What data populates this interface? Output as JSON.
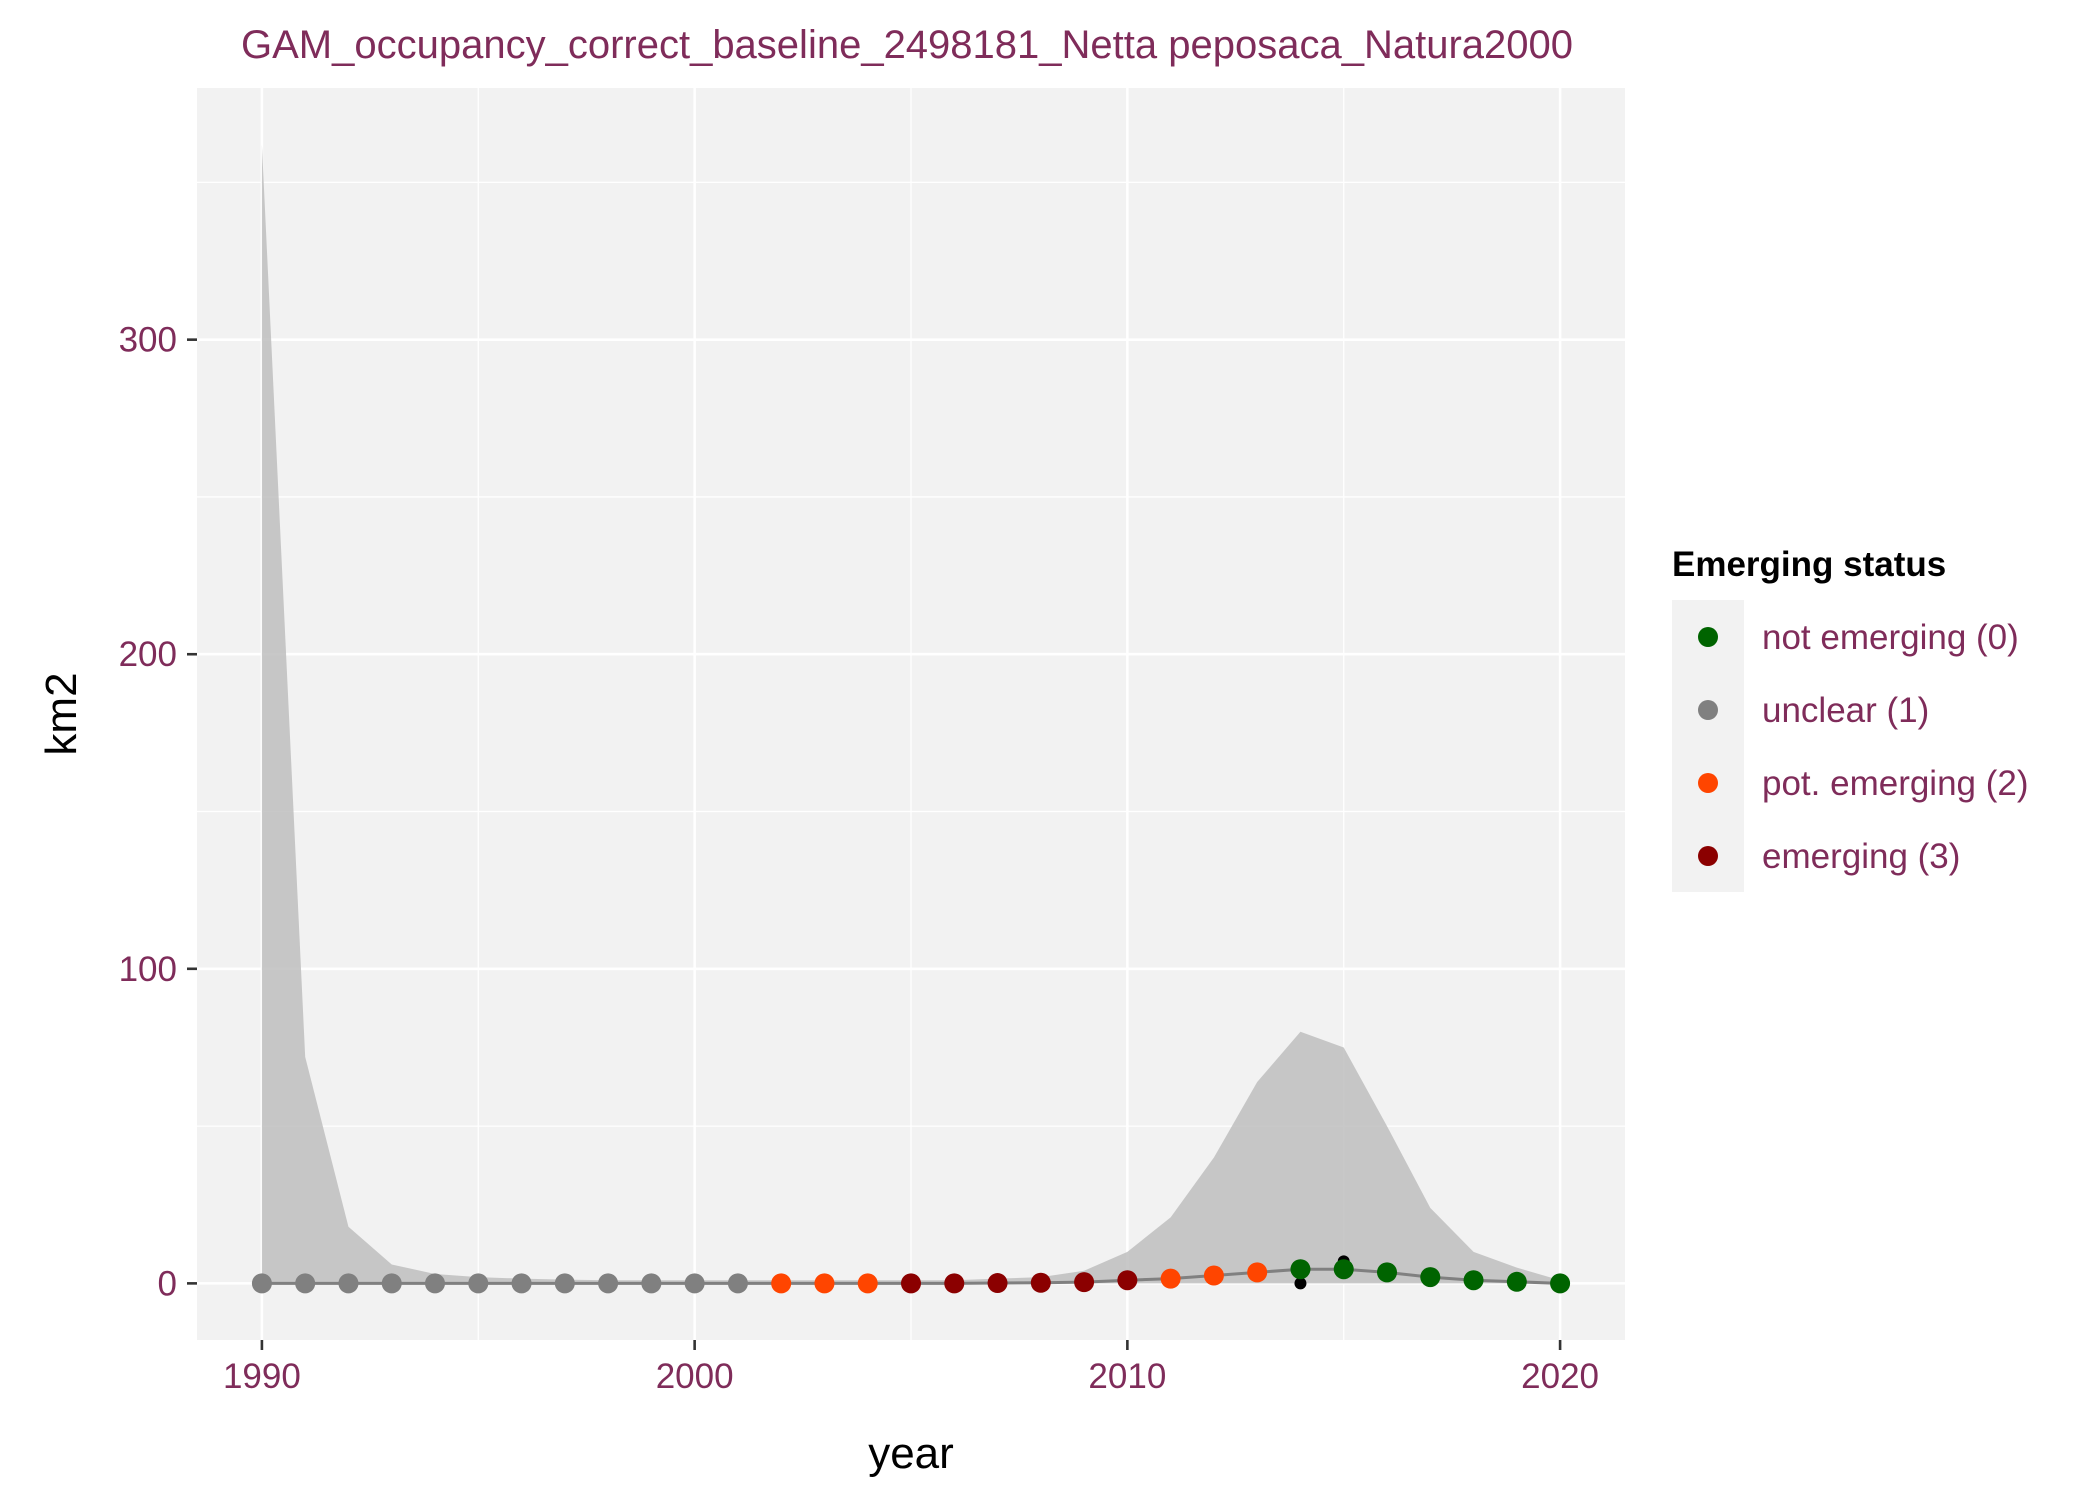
{
  "chart_data": {
    "type": "line",
    "title": "GAM_occupancy_correct_baseline_2498181_Netta peposaca_Natura2000",
    "xlabel": "year",
    "ylabel": "km2",
    "xlim": [
      1988.5,
      2021.5
    ],
    "ylim": [
      -18,
      380
    ],
    "x_ticks": [
      1990,
      2000,
      2010,
      2020
    ],
    "x_tick_labels": [
      "1990",
      "2000",
      "2010",
      "2020"
    ],
    "y_ticks": [
      0,
      100,
      200,
      300
    ],
    "y_tick_labels": [
      "0",
      "100",
      "200",
      "300"
    ],
    "grid": true,
    "panel_background": "#f2f2f2",
    "ribbon_color": "#bebebe",
    "line_color": "#808080",
    "legend": {
      "title": "Emerging status",
      "position": "right",
      "entries": [
        {
          "label": "not emerging (0)",
          "color": "#006400"
        },
        {
          "label": "unclear (1)",
          "color": "#808080"
        },
        {
          "label": "pot. emerging (2)",
          "color": "#ff4500"
        },
        {
          "label": "emerging (3)",
          "color": "#8b0000"
        }
      ]
    },
    "series": [
      {
        "x": [
          1990,
          1991,
          1992,
          1993,
          1994,
          1995,
          1996,
          1997,
          1998,
          1999,
          2000,
          2001,
          2002,
          2003,
          2004,
          2005,
          2006,
          2007,
          2008,
          2009,
          2010,
          2011,
          2012,
          2013,
          2014,
          2015,
          2016,
          2017,
          2018,
          2019,
          2020
        ],
        "fit": [
          0,
          0,
          0,
          0,
          0,
          0,
          0,
          0,
          0,
          0,
          0,
          0,
          0,
          0,
          0,
          0,
          0,
          0.1,
          0.2,
          0.4,
          1,
          1.5,
          2.5,
          3.5,
          4.5,
          4.5,
          3.5,
          2,
          1,
          0.5,
          0
        ],
        "lower": [
          0,
          0,
          0,
          0,
          0,
          0,
          0,
          0,
          0,
          0,
          0,
          0,
          0,
          0,
          0,
          0,
          0,
          0,
          0,
          0,
          0,
          0,
          0,
          0,
          0,
          0,
          0,
          0,
          0,
          0,
          0
        ],
        "upper": [
          362,
          72,
          18,
          6,
          3,
          2,
          1.5,
          1.2,
          1,
          1,
          1,
          1,
          1,
          1,
          1,
          1,
          1,
          1.5,
          2,
          4,
          10,
          21,
          40,
          64,
          80,
          75,
          50,
          24,
          10,
          5,
          1
        ],
        "status": [
          1,
          1,
          1,
          1,
          1,
          1,
          1,
          1,
          1,
          1,
          1,
          1,
          2,
          2,
          2,
          3,
          3,
          3,
          3,
          3,
          3,
          2,
          2,
          2,
          0,
          0,
          0,
          0,
          0,
          0,
          0
        ]
      }
    ],
    "observed_points": {
      "color": "#000000",
      "points": [
        {
          "x": 1996,
          "y": 0.5
        },
        {
          "x": 2007,
          "y": 0.5
        },
        {
          "x": 2013,
          "y": 3
        },
        {
          "x": 2014,
          "y": 0
        },
        {
          "x": 2015,
          "y": 7
        }
      ]
    }
  }
}
